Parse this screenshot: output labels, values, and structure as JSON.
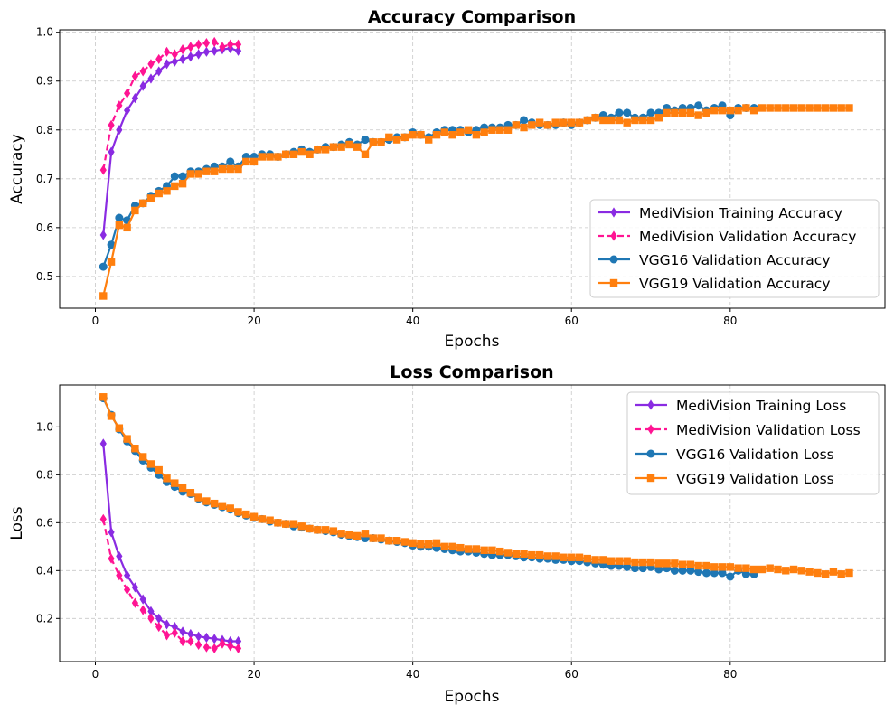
{
  "colors": {
    "medi_train": "#8a2be2",
    "medi_val": "#ff1493",
    "vgg16": "#1f77b4",
    "vgg19": "#ff7f0e",
    "grid": "#c8c8c8"
  },
  "chart_data": [
    {
      "type": "line",
      "title": "Accuracy Comparison",
      "xlabel": "Epochs",
      "ylabel": "Accuracy",
      "xlim": [
        -4.5,
        99.5
      ],
      "ylim": [
        0.435,
        1.005
      ],
      "xticks": [
        0,
        20,
        40,
        60,
        80
      ],
      "yticks": [
        0.5,
        0.6,
        0.7,
        0.8,
        0.9,
        1.0
      ],
      "ytick_labels": [
        "0.5",
        "0.6",
        "0.7",
        "0.8",
        "0.9",
        "1.0"
      ],
      "grid": true,
      "legend_position": "lower-right",
      "series": [
        {
          "name": "MediVision Training Accuracy",
          "color_key": "medi_train",
          "dash": "solid",
          "marker": "diamond",
          "x_start": 1,
          "values": [
            0.585,
            0.755,
            0.8,
            0.84,
            0.865,
            0.89,
            0.905,
            0.92,
            0.935,
            0.94,
            0.945,
            0.95,
            0.955,
            0.96,
            0.962,
            0.965,
            0.967,
            0.962
          ]
        },
        {
          "name": "MediVision Validation Accuracy",
          "color_key": "medi_val",
          "dash": "dashed",
          "marker": "diamond",
          "x_start": 1,
          "values": [
            0.718,
            0.81,
            0.85,
            0.875,
            0.91,
            0.92,
            0.935,
            0.945,
            0.96,
            0.955,
            0.965,
            0.97,
            0.975,
            0.978,
            0.98,
            0.97,
            0.975,
            0.975
          ]
        },
        {
          "name": "VGG16 Validation Accuracy",
          "color_key": "vgg16",
          "dash": "solid",
          "marker": "circle",
          "x_start": 1,
          "values": [
            0.52,
            0.565,
            0.62,
            0.615,
            0.645,
            0.65,
            0.665,
            0.675,
            0.685,
            0.705,
            0.705,
            0.715,
            0.715,
            0.72,
            0.725,
            0.725,
            0.735,
            0.725,
            0.745,
            0.745,
            0.75,
            0.75,
            0.745,
            0.75,
            0.755,
            0.76,
            0.755,
            0.76,
            0.765,
            0.765,
            0.77,
            0.775,
            0.77,
            0.78,
            0.775,
            0.775,
            0.78,
            0.785,
            0.785,
            0.795,
            0.79,
            0.785,
            0.795,
            0.8,
            0.8,
            0.8,
            0.795,
            0.8,
            0.805,
            0.805,
            0.805,
            0.81,
            0.81,
            0.82,
            0.815,
            0.81,
            0.81,
            0.81,
            0.815,
            0.81,
            0.815,
            0.82,
            0.825,
            0.83,
            0.825,
            0.835,
            0.835,
            0.825,
            0.825,
            0.835,
            0.835,
            0.845,
            0.84,
            0.845,
            0.845,
            0.85,
            0.84,
            0.845,
            0.85,
            0.83,
            0.845,
            0.845,
            0.845
          ]
        },
        {
          "name": "VGG19 Validation Accuracy",
          "color_key": "vgg19",
          "dash": "solid",
          "marker": "square",
          "x_start": 1,
          "values": [
            0.46,
            0.53,
            0.605,
            0.6,
            0.635,
            0.65,
            0.66,
            0.67,
            0.675,
            0.685,
            0.69,
            0.71,
            0.71,
            0.715,
            0.715,
            0.72,
            0.72,
            0.72,
            0.735,
            0.735,
            0.745,
            0.745,
            0.745,
            0.75,
            0.75,
            0.755,
            0.75,
            0.76,
            0.76,
            0.765,
            0.765,
            0.77,
            0.765,
            0.75,
            0.775,
            0.775,
            0.785,
            0.78,
            0.785,
            0.79,
            0.79,
            0.78,
            0.79,
            0.795,
            0.79,
            0.795,
            0.8,
            0.79,
            0.795,
            0.8,
            0.8,
            0.8,
            0.81,
            0.805,
            0.81,
            0.815,
            0.81,
            0.815,
            0.815,
            0.815,
            0.815,
            0.82,
            0.825,
            0.82,
            0.82,
            0.82,
            0.815,
            0.82,
            0.82,
            0.82,
            0.825,
            0.835,
            0.835,
            0.835,
            0.835,
            0.83,
            0.835,
            0.84,
            0.84,
            0.84,
            0.84,
            0.845,
            0.84,
            0.845,
            0.845,
            0.845,
            0.845,
            0.845,
            0.845,
            0.845,
            0.845,
            0.845,
            0.845,
            0.845,
            0.845
          ]
        }
      ]
    },
    {
      "type": "line",
      "title": "Loss Comparison",
      "xlabel": "Epochs",
      "ylabel": "Loss",
      "xlim": [
        -4.5,
        99.5
      ],
      "ylim": [
        0.02,
        1.175
      ],
      "xticks": [
        0,
        20,
        40,
        60,
        80
      ],
      "yticks": [
        0.2,
        0.4,
        0.6,
        0.8,
        1.0
      ],
      "ytick_labels": [
        "0.2",
        "0.4",
        "0.6",
        "0.8",
        "1.0"
      ],
      "grid": true,
      "legend_position": "upper-right",
      "series": [
        {
          "name": "MediVision Training Loss",
          "color_key": "medi_train",
          "dash": "solid",
          "marker": "diamond",
          "x_start": 1,
          "values": [
            0.93,
            0.56,
            0.46,
            0.38,
            0.33,
            0.28,
            0.23,
            0.2,
            0.175,
            0.165,
            0.145,
            0.135,
            0.125,
            0.12,
            0.115,
            0.11,
            0.105,
            0.105
          ]
        },
        {
          "name": "MediVision Validation Loss",
          "color_key": "medi_val",
          "dash": "dashed",
          "marker": "diamond",
          "x_start": 1,
          "values": [
            0.615,
            0.45,
            0.38,
            0.32,
            0.265,
            0.235,
            0.2,
            0.165,
            0.13,
            0.14,
            0.105,
            0.105,
            0.09,
            0.08,
            0.075,
            0.095,
            0.085,
            0.075
          ]
        },
        {
          "name": "VGG16 Validation Loss",
          "color_key": "vgg16",
          "dash": "solid",
          "marker": "circle",
          "x_start": 1,
          "values": [
            1.12,
            1.05,
            0.99,
            0.94,
            0.9,
            0.86,
            0.83,
            0.8,
            0.77,
            0.75,
            0.73,
            0.72,
            0.7,
            0.685,
            0.675,
            0.665,
            0.655,
            0.64,
            0.63,
            0.62,
            0.615,
            0.605,
            0.6,
            0.595,
            0.585,
            0.58,
            0.575,
            0.57,
            0.565,
            0.56,
            0.55,
            0.545,
            0.54,
            0.535,
            0.535,
            0.53,
            0.525,
            0.52,
            0.515,
            0.505,
            0.5,
            0.5,
            0.495,
            0.49,
            0.485,
            0.48,
            0.48,
            0.475,
            0.47,
            0.465,
            0.465,
            0.465,
            0.46,
            0.455,
            0.455,
            0.45,
            0.45,
            0.445,
            0.445,
            0.44,
            0.44,
            0.435,
            0.43,
            0.425,
            0.42,
            0.42,
            0.415,
            0.41,
            0.41,
            0.415,
            0.405,
            0.41,
            0.4,
            0.4,
            0.4,
            0.395,
            0.39,
            0.39,
            0.39,
            0.375,
            0.4,
            0.385,
            0.385
          ]
        },
        {
          "name": "VGG19 Validation Loss",
          "color_key": "vgg19",
          "dash": "solid",
          "marker": "square",
          "x_start": 1,
          "values": [
            1.125,
            1.045,
            0.995,
            0.95,
            0.91,
            0.875,
            0.845,
            0.82,
            0.785,
            0.765,
            0.745,
            0.725,
            0.705,
            0.69,
            0.68,
            0.67,
            0.66,
            0.645,
            0.635,
            0.625,
            0.615,
            0.61,
            0.6,
            0.595,
            0.595,
            0.585,
            0.575,
            0.57,
            0.57,
            0.565,
            0.555,
            0.55,
            0.545,
            0.555,
            0.535,
            0.535,
            0.525,
            0.525,
            0.52,
            0.515,
            0.51,
            0.51,
            0.515,
            0.5,
            0.5,
            0.495,
            0.49,
            0.49,
            0.485,
            0.485,
            0.48,
            0.475,
            0.47,
            0.47,
            0.465,
            0.465,
            0.46,
            0.46,
            0.455,
            0.455,
            0.455,
            0.45,
            0.445,
            0.445,
            0.44,
            0.44,
            0.44,
            0.435,
            0.435,
            0.435,
            0.43,
            0.43,
            0.43,
            0.425,
            0.425,
            0.42,
            0.42,
            0.415,
            0.415,
            0.415,
            0.41,
            0.41,
            0.405,
            0.405,
            0.41,
            0.405,
            0.4,
            0.405,
            0.4,
            0.395,
            0.39,
            0.385,
            0.395,
            0.385,
            0.39
          ]
        }
      ]
    }
  ]
}
